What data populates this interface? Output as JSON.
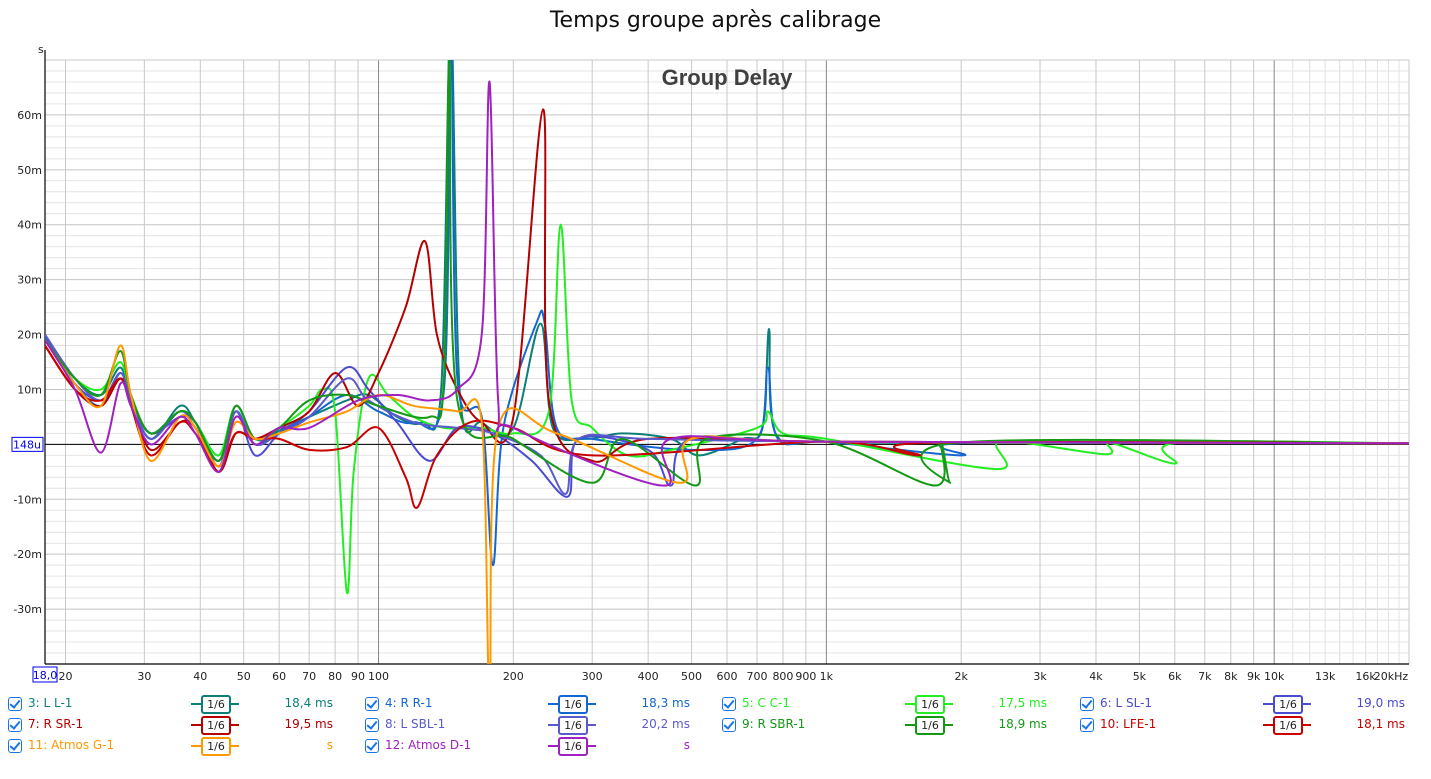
{
  "window_title": "Temps groupe après calibrage",
  "chart_data": {
    "type": "line",
    "title": "Group Delay",
    "ylabel": "s",
    "xlabel": "Hz",
    "x_scale": "log",
    "xlim": [
      18,
      20000
    ],
    "ylim": [
      -40,
      70
    ],
    "grid": true,
    "y_ticks": [
      -30,
      -20,
      -10,
      10,
      20,
      30,
      40,
      50,
      60
    ],
    "y_tick_labels": [
      "-30m",
      "-20m",
      "-10m",
      "10m",
      "20m",
      "30m",
      "40m",
      "50m",
      "60m"
    ],
    "y_zero_marker": "148u",
    "x_start_marker": "18,0",
    "x_ticks": [
      20,
      30,
      40,
      50,
      60,
      70,
      80,
      90,
      100,
      200,
      300,
      400,
      500,
      600,
      700,
      800,
      900,
      1000,
      2000,
      3000,
      4000,
      5000,
      6000,
      7000,
      8000,
      9000,
      10000,
      13000,
      16000,
      20000
    ],
    "x_tick_labels": [
      "20",
      "30",
      "40",
      "50",
      "60",
      "70",
      "80",
      "90",
      "100",
      "200",
      "300",
      "400",
      "500",
      "600",
      "700",
      "800",
      "900",
      "1k",
      "2k",
      "3k",
      "4k",
      "5k",
      "6k",
      "7k",
      "8k",
      "9k",
      "10k",
      "13k",
      "16k",
      "20kHz"
    ],
    "series": [
      {
        "name": "3: L L-1",
        "color": "#0b7f78",
        "smoothing": "1/6",
        "value": "18,4 ms",
        "points": [
          [
            18,
            19.5
          ],
          [
            21,
            12
          ],
          [
            24,
            9
          ],
          [
            26.5,
            14
          ],
          [
            28,
            8
          ],
          [
            31,
            1
          ],
          [
            36,
            7
          ],
          [
            39,
            4
          ],
          [
            44,
            -3
          ],
          [
            48,
            6
          ],
          [
            53,
            0
          ],
          [
            60,
            2.5
          ],
          [
            70,
            5
          ],
          [
            85,
            8
          ],
          [
            95,
            9
          ],
          [
            110,
            5
          ],
          [
            125,
            4
          ],
          [
            138,
            10
          ],
          [
            145,
            78
          ],
          [
            152,
            9
          ],
          [
            170,
            4
          ],
          [
            200,
            3
          ],
          [
            230,
            22
          ],
          [
            245,
            3
          ],
          [
            290,
            1
          ],
          [
            350,
            2
          ],
          [
            450,
            1
          ],
          [
            520,
            -2
          ],
          [
            650,
            1
          ],
          [
            720,
            3
          ],
          [
            745,
            21
          ],
          [
            770,
            2
          ],
          [
            1000,
            0.5
          ],
          [
            2000,
            0.3
          ],
          [
            20000,
            0.2
          ]
        ]
      },
      {
        "name": "4: R R-1",
        "color": "#1466d0",
        "smoothing": "1/6",
        "value": "18,3 ms",
        "points": [
          [
            18,
            20
          ],
          [
            21,
            11
          ],
          [
            24,
            7
          ],
          [
            26.5,
            13
          ],
          [
            28,
            8
          ],
          [
            31,
            2
          ],
          [
            36,
            6
          ],
          [
            39,
            4
          ],
          [
            44,
            -2
          ],
          [
            48,
            7
          ],
          [
            53,
            1
          ],
          [
            60,
            2
          ],
          [
            70,
            5
          ],
          [
            85,
            9
          ],
          [
            100,
            6
          ],
          [
            120,
            4
          ],
          [
            140,
            10
          ],
          [
            145,
            75
          ],
          [
            150,
            12
          ],
          [
            170,
            5
          ],
          [
            180,
            -22
          ],
          [
            190,
            3
          ],
          [
            225,
            22
          ],
          [
            235,
            22
          ],
          [
            250,
            3
          ],
          [
            300,
            1
          ],
          [
            500,
            -1
          ],
          [
            700,
            1
          ],
          [
            740,
            14
          ],
          [
            780,
            1
          ],
          [
            1000,
            0.5
          ],
          [
            2000,
            -2
          ],
          [
            2100,
            0.3
          ],
          [
            20000,
            0.2
          ]
        ]
      },
      {
        "name": "5: C C-1",
        "color": "#22ee22",
        "smoothing": "1/6",
        "value": "17,5 ms",
        "points": [
          [
            18,
            19
          ],
          [
            21,
            12
          ],
          [
            24,
            10
          ],
          [
            26.5,
            15
          ],
          [
            28,
            9
          ],
          [
            31,
            2
          ],
          [
            36,
            6
          ],
          [
            39,
            4
          ],
          [
            44,
            -2
          ],
          [
            48,
            7
          ],
          [
            53,
            1
          ],
          [
            60,
            3
          ],
          [
            70,
            7
          ],
          [
            75,
            10
          ],
          [
            80,
            6
          ],
          [
            85,
            -27
          ],
          [
            88,
            -5
          ],
          [
            95,
            12
          ],
          [
            105,
            9
          ],
          [
            120,
            5
          ],
          [
            140,
            3
          ],
          [
            170,
            3
          ],
          [
            200,
            2
          ],
          [
            240,
            6
          ],
          [
            255,
            40
          ],
          [
            270,
            8
          ],
          [
            300,
            3
          ],
          [
            360,
            -2
          ],
          [
            450,
            -1
          ],
          [
            700,
            3
          ],
          [
            740,
            6
          ],
          [
            800,
            2
          ],
          [
            1000,
            1
          ],
          [
            2400,
            -4.5
          ],
          [
            2450,
            0.5
          ],
          [
            4200,
            -1.8
          ],
          [
            4300,
            0.3
          ],
          [
            6000,
            -3.5
          ],
          [
            6100,
            0.3
          ],
          [
            20000,
            0.2
          ]
        ]
      },
      {
        "name": "6: L SL-1",
        "color": "#4b4bd0",
        "smoothing": "1/6",
        "value": "19,0 ms",
        "points": [
          [
            18,
            19
          ],
          [
            21,
            11
          ],
          [
            24,
            8
          ],
          [
            26.5,
            12
          ],
          [
            28,
            8
          ],
          [
            31,
            2
          ],
          [
            36,
            5
          ],
          [
            39,
            4
          ],
          [
            44,
            -4
          ],
          [
            48,
            6
          ],
          [
            53,
            -2
          ],
          [
            60,
            2
          ],
          [
            70,
            6
          ],
          [
            85,
            14
          ],
          [
            95,
            10
          ],
          [
            110,
            4
          ],
          [
            130,
            -3
          ],
          [
            150,
            3
          ],
          [
            180,
            2
          ],
          [
            220,
            -3
          ],
          [
            265,
            -9.5
          ],
          [
            280,
            1
          ],
          [
            400,
            -1
          ],
          [
            450,
            -7.5
          ],
          [
            500,
            1
          ],
          [
            1000,
            0.5
          ],
          [
            20000,
            0.2
          ]
        ]
      },
      {
        "name": "7: R SR-1",
        "color": "#b40000",
        "smoothing": "1/6",
        "value": "19,5 ms",
        "points": [
          [
            18,
            18
          ],
          [
            21,
            10
          ],
          [
            24,
            7
          ],
          [
            26.5,
            12
          ],
          [
            28,
            8
          ],
          [
            31,
            -1
          ],
          [
            36,
            4
          ],
          [
            39,
            3
          ],
          [
            44,
            -5
          ],
          [
            48,
            2
          ],
          [
            53,
            1
          ],
          [
            60,
            3
          ],
          [
            70,
            6
          ],
          [
            80,
            13
          ],
          [
            90,
            7
          ],
          [
            100,
            13
          ],
          [
            115,
            25
          ],
          [
            127,
            37
          ],
          [
            135,
            20
          ],
          [
            150,
            10
          ],
          [
            170,
            4
          ],
          [
            200,
            5
          ],
          [
            233,
            61
          ],
          [
            240,
            8
          ],
          [
            300,
            -3
          ],
          [
            400,
            1
          ],
          [
            1000,
            0.5
          ],
          [
            20000,
            0.2
          ]
        ]
      },
      {
        "name": "8: L SBL-1",
        "color": "#5a5acc",
        "smoothing": "1/6",
        "value": "20,2 ms",
        "points": [
          [
            18,
            20
          ],
          [
            21,
            12
          ],
          [
            24,
            8
          ],
          [
            26.5,
            13
          ],
          [
            28,
            8
          ],
          [
            31,
            1
          ],
          [
            36,
            6
          ],
          [
            39,
            3
          ],
          [
            44,
            -3
          ],
          [
            48,
            6
          ],
          [
            53,
            0
          ],
          [
            60,
            2
          ],
          [
            70,
            5
          ],
          [
            85,
            12
          ],
          [
            95,
            8
          ],
          [
            120,
            4
          ],
          [
            150,
            3
          ],
          [
            180,
            2
          ],
          [
            230,
            -2
          ],
          [
            262,
            -9
          ],
          [
            280,
            1
          ],
          [
            400,
            1
          ],
          [
            1000,
            0.5
          ],
          [
            20000,
            0.2
          ]
        ]
      },
      {
        "name": "9: R SBR-1",
        "color": "#149914",
        "smoothing": "1/6",
        "value": "18,9 ms",
        "points": [
          [
            18,
            19
          ],
          [
            21,
            12
          ],
          [
            24,
            9
          ],
          [
            26.5,
            17
          ],
          [
            28,
            9
          ],
          [
            31,
            2
          ],
          [
            36,
            6
          ],
          [
            39,
            4
          ],
          [
            44,
            -3
          ],
          [
            48,
            7
          ],
          [
            53,
            1
          ],
          [
            60,
            3
          ],
          [
            70,
            8
          ],
          [
            85,
            9
          ],
          [
            100,
            7
          ],
          [
            130,
            5
          ],
          [
            140,
            12
          ],
          [
            144,
            70
          ],
          [
            150,
            8
          ],
          [
            200,
            1
          ],
          [
            300,
            -7
          ],
          [
            350,
            1
          ],
          [
            510,
            -7.5
          ],
          [
            540,
            1
          ],
          [
            1000,
            0.5
          ],
          [
            1750,
            -7.5
          ],
          [
            1800,
            0.5
          ],
          [
            1890,
            -7
          ],
          [
            1950,
            0.3
          ],
          [
            20000,
            0.2
          ]
        ]
      },
      {
        "name": "10: LFE-1",
        "color": "#c80000",
        "smoothing": "1/6",
        "value": "18,1 ms",
        "points": [
          [
            18,
            18
          ],
          [
            21,
            10
          ],
          [
            24,
            8
          ],
          [
            26.5,
            12
          ],
          [
            28,
            7
          ],
          [
            31,
            -2
          ],
          [
            36,
            4
          ],
          [
            39,
            2
          ],
          [
            44,
            -4
          ],
          [
            48,
            2
          ],
          [
            53,
            1
          ],
          [
            60,
            1
          ],
          [
            70,
            -1
          ],
          [
            85,
            -0.5
          ],
          [
            100,
            3
          ],
          [
            115,
            -6
          ],
          [
            122,
            -11.5
          ],
          [
            135,
            -2
          ],
          [
            160,
            4
          ],
          [
            200,
            3
          ],
          [
            300,
            -2
          ],
          [
            1000,
            0.5
          ],
          [
            1600,
            -2
          ],
          [
            1700,
            0.3
          ],
          [
            20000,
            0.2
          ]
        ]
      },
      {
        "name": "11: Atmos G-1",
        "color": "#ff9900",
        "smoothing": "1/6",
        "value": "s",
        "points": [
          [
            18,
            19
          ],
          [
            21,
            11
          ],
          [
            24,
            7
          ],
          [
            26.5,
            18
          ],
          [
            28,
            9
          ],
          [
            31,
            -3
          ],
          [
            36,
            5
          ],
          [
            39,
            3
          ],
          [
            44,
            -4
          ],
          [
            48,
            4
          ],
          [
            53,
            1
          ],
          [
            60,
            2
          ],
          [
            70,
            4
          ],
          [
            85,
            6
          ],
          [
            100,
            9
          ],
          [
            120,
            7
          ],
          [
            150,
            6
          ],
          [
            170,
            4
          ],
          [
            177,
            -45
          ],
          [
            185,
            3
          ],
          [
            250,
            2
          ],
          [
            470,
            -7
          ],
          [
            500,
            1
          ],
          [
            1000,
            0.5
          ],
          [
            20000,
            0.2
          ]
        ]
      },
      {
        "name": "12: Atmos D-1",
        "color": "#a020c0",
        "smoothing": "1/6",
        "value": "s",
        "points": [
          [
            18,
            19
          ],
          [
            21,
            10
          ],
          [
            24,
            -1.5
          ],
          [
            26.5,
            11
          ],
          [
            28,
            7
          ],
          [
            31,
            0
          ],
          [
            36,
            5
          ],
          [
            39,
            2
          ],
          [
            44,
            -5
          ],
          [
            48,
            5
          ],
          [
            53,
            0
          ],
          [
            60,
            3
          ],
          [
            70,
            3
          ],
          [
            90,
            8
          ],
          [
            110,
            9
          ],
          [
            130,
            8
          ],
          [
            150,
            10
          ],
          [
            170,
            20
          ],
          [
            177,
            66
          ],
          [
            185,
            8
          ],
          [
            200,
            3
          ],
          [
            430,
            -7.5
          ],
          [
            450,
            1
          ],
          [
            1000,
            0.5
          ],
          [
            20000,
            0.2
          ]
        ]
      }
    ]
  }
}
